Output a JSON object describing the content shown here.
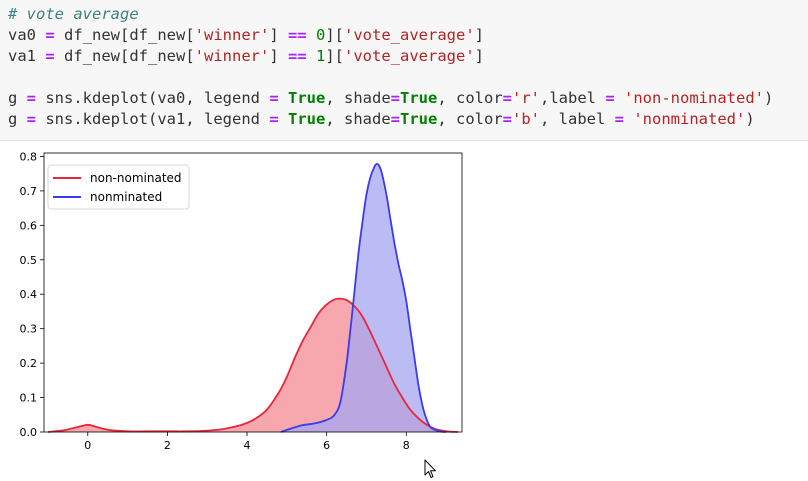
{
  "code": {
    "lines": [
      [
        {
          "t": "# vote average",
          "c": "comment"
        }
      ],
      [
        {
          "t": "va0 "
        },
        {
          "t": "=",
          "c": "op"
        },
        {
          "t": " df_new[df_new["
        },
        {
          "t": "'winner'",
          "c": "str"
        },
        {
          "t": "] "
        },
        {
          "t": "==",
          "c": "op"
        },
        {
          "t": " "
        },
        {
          "t": "0",
          "c": "num"
        },
        {
          "t": "]["
        },
        {
          "t": "'vote_average'",
          "c": "str"
        },
        {
          "t": "]"
        }
      ],
      [
        {
          "t": "va1 "
        },
        {
          "t": "=",
          "c": "op"
        },
        {
          "t": " df_new[df_new["
        },
        {
          "t": "'winner'",
          "c": "str"
        },
        {
          "t": "] "
        },
        {
          "t": "==",
          "c": "op"
        },
        {
          "t": " "
        },
        {
          "t": "1",
          "c": "num"
        },
        {
          "t": "]["
        },
        {
          "t": "'vote_average'",
          "c": "str"
        },
        {
          "t": "]"
        }
      ],
      [
        {
          "t": ""
        }
      ],
      [
        {
          "t": "g "
        },
        {
          "t": "=",
          "c": "op"
        },
        {
          "t": " sns.kdeplot(va0, legend "
        },
        {
          "t": "=",
          "c": "op"
        },
        {
          "t": " "
        },
        {
          "t": "True",
          "c": "kw"
        },
        {
          "t": ", shade"
        },
        {
          "t": "=",
          "c": "op"
        },
        {
          "t": "True",
          "c": "kw"
        },
        {
          "t": ", color"
        },
        {
          "t": "=",
          "c": "op"
        },
        {
          "t": "'r'",
          "c": "str"
        },
        {
          "t": ",label "
        },
        {
          "t": "=",
          "c": "op"
        },
        {
          "t": " "
        },
        {
          "t": "'non-nominated'",
          "c": "str"
        },
        {
          "t": ")"
        }
      ],
      [
        {
          "t": "g "
        },
        {
          "t": "=",
          "c": "op"
        },
        {
          "t": " sns.kdeplot(va1, legend "
        },
        {
          "t": "=",
          "c": "op"
        },
        {
          "t": " "
        },
        {
          "t": "True",
          "c": "kw"
        },
        {
          "t": ", shade"
        },
        {
          "t": "=",
          "c": "op"
        },
        {
          "t": "True",
          "c": "kw"
        },
        {
          "t": ", color"
        },
        {
          "t": "=",
          "c": "op"
        },
        {
          "t": "'b'",
          "c": "str"
        },
        {
          "t": ", label "
        },
        {
          "t": "=",
          "c": "op"
        },
        {
          "t": " "
        },
        {
          "t": "'nonminated'",
          "c": "str"
        },
        {
          "t": ")"
        }
      ]
    ]
  },
  "chart_data": {
    "type": "area",
    "title": "",
    "xlabel": "",
    "ylabel": "",
    "xlim": [
      -1.1,
      9.4
    ],
    "ylim": [
      0,
      0.81
    ],
    "xticks": [
      0,
      2,
      4,
      6,
      8
    ],
    "yticks": [
      0.0,
      0.1,
      0.2,
      0.3,
      0.4,
      0.5,
      0.6,
      0.7,
      0.8
    ],
    "ytick_labels": [
      "0.0",
      "0.1",
      "0.2",
      "0.3",
      "0.4",
      "0.5",
      "0.6",
      "0.7",
      "0.8"
    ],
    "grid": false,
    "legend_position": "top-left",
    "series": [
      {
        "name": "non-nominated",
        "color": "#e8283a",
        "fill": "#f7a8ae",
        "x": [
          -1.0,
          -0.6,
          -0.3,
          -0.1,
          0.0,
          0.1,
          0.3,
          0.6,
          1.0,
          1.5,
          2.0,
          2.5,
          3.0,
          3.3,
          3.6,
          3.9,
          4.2,
          4.5,
          4.8,
          5.0,
          5.2,
          5.4,
          5.6,
          5.8,
          6.0,
          6.2,
          6.35,
          6.5,
          6.7,
          6.9,
          7.1,
          7.3,
          7.5,
          7.7,
          7.9,
          8.1,
          8.3,
          8.5,
          8.7,
          8.9,
          9.1,
          9.3
        ],
        "y": [
          0.0,
          0.005,
          0.013,
          0.019,
          0.021,
          0.019,
          0.012,
          0.005,
          0.002,
          0.002,
          0.002,
          0.002,
          0.004,
          0.007,
          0.013,
          0.022,
          0.038,
          0.065,
          0.115,
          0.16,
          0.215,
          0.265,
          0.305,
          0.345,
          0.37,
          0.385,
          0.387,
          0.383,
          0.365,
          0.335,
          0.29,
          0.24,
          0.19,
          0.14,
          0.1,
          0.065,
          0.04,
          0.022,
          0.01,
          0.004,
          0.001,
          0.0
        ]
      },
      {
        "name": "nonminated",
        "color": "#3a3af0",
        "fill": "#a6a6f2",
        "x": [
          4.85,
          5.1,
          5.4,
          5.7,
          6.0,
          6.2,
          6.35,
          6.5,
          6.6,
          6.7,
          6.8,
          6.9,
          7.0,
          7.1,
          7.2,
          7.25,
          7.3,
          7.35,
          7.4,
          7.5,
          7.6,
          7.7,
          7.8,
          7.9,
          8.0,
          8.1,
          8.2,
          8.3,
          8.4,
          8.5,
          8.6,
          8.75,
          8.9,
          9.0
        ],
        "y": [
          0.0,
          0.01,
          0.02,
          0.025,
          0.035,
          0.05,
          0.09,
          0.2,
          0.3,
          0.41,
          0.52,
          0.61,
          0.69,
          0.74,
          0.77,
          0.778,
          0.776,
          0.765,
          0.745,
          0.69,
          0.62,
          0.55,
          0.49,
          0.44,
          0.38,
          0.3,
          0.22,
          0.14,
          0.08,
          0.04,
          0.015,
          0.005,
          0.001,
          0.0
        ]
      }
    ]
  }
}
